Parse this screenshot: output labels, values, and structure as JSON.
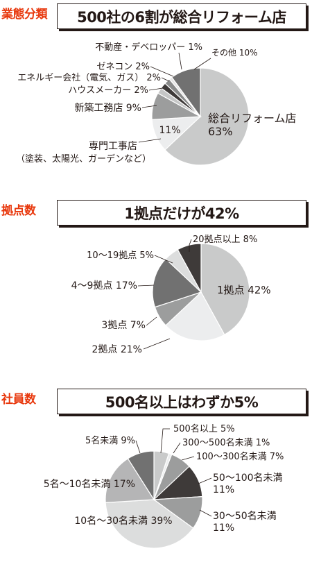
{
  "sections": [
    {
      "tag": "業態分類",
      "headline": "500社の6割が総合リフォーム店"
    },
    {
      "tag": "拠点数",
      "headline": "1拠点だけが42%"
    },
    {
      "tag": "社員数",
      "headline": "500名以上はわずか5%"
    }
  ],
  "chart_data": [
    {
      "type": "pie",
      "title": "500社の6割が総合リフォーム店",
      "unit": "%",
      "colors_note": "grays",
      "slices": [
        {
          "label": "総合リフォーム店",
          "value": 63,
          "value_text": "63%",
          "color": "#c9caca"
        },
        {
          "label": "専門工事店",
          "sublabel": "（塗装、太陽光、ガーデンなど）",
          "value": 11,
          "value_text": "11%",
          "color": "#ecedee"
        },
        {
          "label": "新築工務店",
          "value": 9,
          "value_text": "9%",
          "color": "#9c9d9d"
        },
        {
          "label": "ハウスメーカー",
          "value": 2,
          "value_text": "2%",
          "color": "#c5c6c6"
        },
        {
          "label": "エネルギー会社（電気、ガス）",
          "value": 2,
          "value_text": "2%",
          "color": "#3e3a39"
        },
        {
          "label": "ゼネコン",
          "value": 2,
          "value_text": "2%",
          "color": "#8a8b8b"
        },
        {
          "label": "不動産・デベロッパー",
          "value": 1,
          "value_text": "1%",
          "color": "#e6e6e6"
        },
        {
          "label": "その他",
          "value": 10,
          "value_text": "10%",
          "color": "#717171"
        }
      ]
    },
    {
      "type": "pie",
      "title": "1拠点だけが42%",
      "unit": "%",
      "slices": [
        {
          "label": "1拠点",
          "value": 42,
          "value_text": "42%",
          "color": "#c9caca"
        },
        {
          "label": "2拠点",
          "value": 21,
          "value_text": "21%",
          "color": "#ecedee"
        },
        {
          "label": "3拠点",
          "value": 7,
          "value_text": "7%",
          "color": "#9c9d9d"
        },
        {
          "label": "4～9拠点",
          "value": 17,
          "value_text": "17%",
          "color": "#717171"
        },
        {
          "label": "10～19拠点",
          "value": 5,
          "value_text": "5%",
          "color": "#dcdddd"
        },
        {
          "label": "20拠点以上",
          "value": 8,
          "value_text": "8%",
          "color": "#3e3a39"
        }
      ]
    },
    {
      "type": "pie",
      "title": "500名以上はわずか5%",
      "unit": "%",
      "slices": [
        {
          "label": "500名以上",
          "value": 5,
          "value_text": "5%",
          "color": "#c9caca"
        },
        {
          "label": "300～500名未満",
          "value": 1,
          "value_text": "1%",
          "color": "#ecedee"
        },
        {
          "label": "100～300名未満",
          "value": 7,
          "value_text": "7%",
          "color": "#9c9d9d"
        },
        {
          "label": "50～100名未満",
          "value": 11,
          "value_text": "11%",
          "color": "#3e3a39"
        },
        {
          "label": "30～50名未満",
          "value": 11,
          "value_text": "11%",
          "color": "#9c9d9d"
        },
        {
          "label": "10名～30名未満",
          "value": 39,
          "value_text": "39%",
          "color": "#dcdddd"
        },
        {
          "label": "5名～10名未満",
          "value": 17,
          "value_text": "17%",
          "color": "#b5b5b6"
        },
        {
          "label": "5名未満",
          "value": 9,
          "value_text": "9%",
          "color": "#717171"
        }
      ]
    }
  ]
}
